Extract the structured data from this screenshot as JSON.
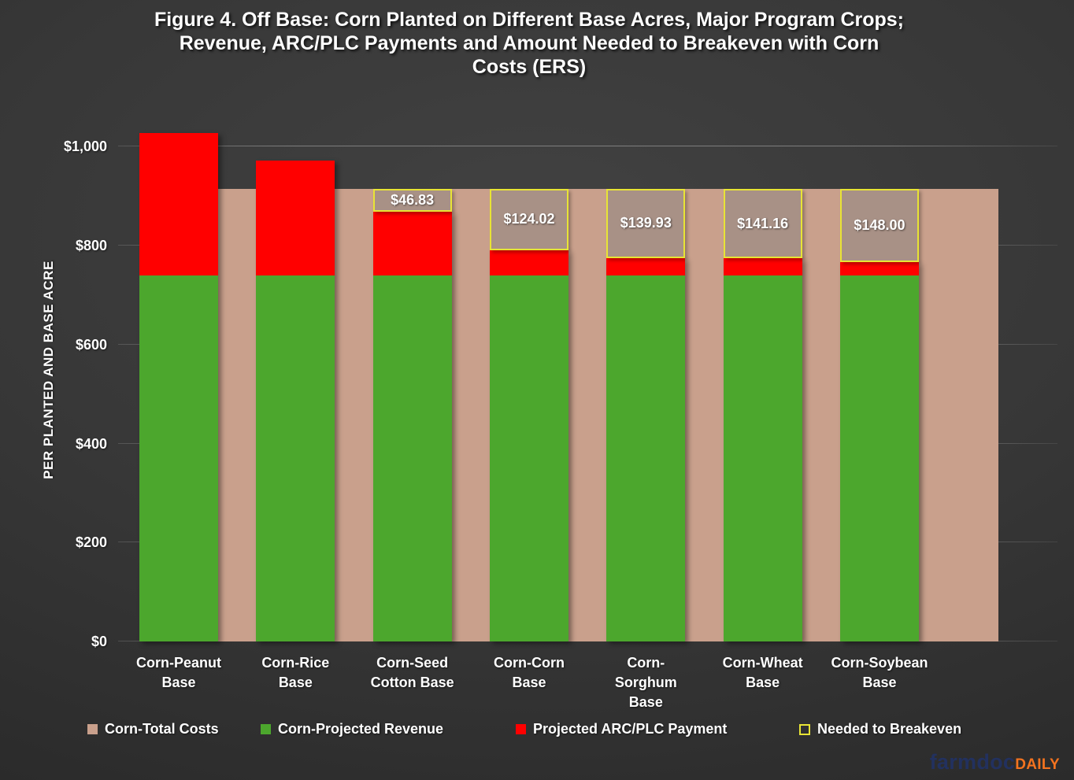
{
  "title_display": "Figure 4. Off Base: Corn Planted on Different Base Acres, Major Program Crops;\nRevenue, ARC/PLC Payments and Amount Needed to Breakeven with Corn\nCosts (ERS)",
  "chart_data": {
    "type": "bar",
    "title": "Figure 4. Off Base: Corn Planted on Different Base Acres, Major Program Crops; Revenue, ARC/PLC Payments and Amount Needed to Breakeven with Corn Costs (ERS)",
    "xlabel": "",
    "ylabel": "PER PLANTED AND BASE ACRE",
    "ylim": [
      0,
      1040
    ],
    "grid": true,
    "legend_position": "bottom",
    "yticks": [
      {
        "value": 0,
        "label": "$0"
      },
      {
        "value": 200,
        "label": "$200"
      },
      {
        "value": 400,
        "label": "$400"
      },
      {
        "value": 600,
        "label": "$600"
      },
      {
        "value": 800,
        "label": "$800"
      },
      {
        "value": 1000,
        "label": "$1,000"
      }
    ],
    "categories": [
      {
        "name": "Corn-Peanut Base",
        "label_lines": "Corn-Peanut\nBase"
      },
      {
        "name": "Corn-Rice Base",
        "label_lines": "Corn-Rice\nBase"
      },
      {
        "name": "Corn-Seed Cotton Base",
        "label_lines": "Corn-Seed\nCotton Base"
      },
      {
        "name": "Corn-Corn Base",
        "label_lines": "Corn-Corn\nBase"
      },
      {
        "name": "Corn-Sorghum Base",
        "label_lines": "Corn-\nSorghum\nBase"
      },
      {
        "name": "Corn-Wheat Base",
        "label_lines": "Corn-Wheat\nBase"
      },
      {
        "name": "Corn-Soybean Base",
        "label_lines": "Corn-Soybean\nBase"
      }
    ],
    "series": [
      {
        "name": "Corn-Total Costs",
        "type": "background_band",
        "color": "#C9A08C",
        "value": 915
      },
      {
        "name": "Corn-Projected Revenue",
        "type": "stacked_bar",
        "color": "#4CA72D",
        "values": [
          740,
          740,
          740,
          740,
          740,
          740,
          740
        ]
      },
      {
        "name": "Projected ARC/PLC Payment",
        "type": "stacked_bar",
        "color": "#FF0000",
        "values": [
          287,
          232,
          128.17,
          50.98,
          35.07,
          33.84,
          27
        ]
      },
      {
        "name": "Needed to Breakeven",
        "type": "outlined_box",
        "border_color": "#E8E435",
        "fill_color": "#A89186",
        "values": [
          null,
          null,
          46.83,
          124.02,
          139.93,
          141.16,
          148.0
        ],
        "labels": [
          null,
          null,
          "$46.83",
          "$124.02",
          "$139.93",
          "$141.16",
          "$148.00"
        ]
      }
    ]
  },
  "branding": {
    "brand": "farmdoc",
    "suffix": "DAILY",
    "brand_color": "#22315F",
    "suffix_color": "#F4731F"
  }
}
